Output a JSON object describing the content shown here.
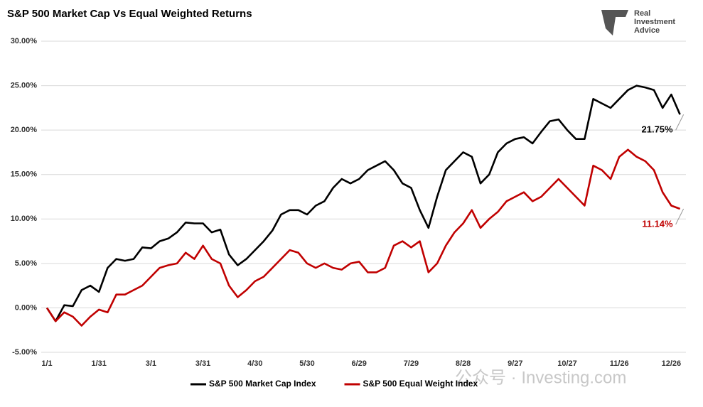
{
  "chart_data": {
    "type": "line",
    "title": "S&P 500 Market Cap Vs Equal Weighted Returns",
    "logo": [
      "Real",
      "Investment",
      "Advice"
    ],
    "watermark": "公众号 · Investing.com",
    "categories": [
      "1/1",
      null,
      null,
      null,
      null,
      null,
      "1/31",
      null,
      null,
      null,
      null,
      null,
      "3/1",
      null,
      null,
      null,
      null,
      null,
      "3/31",
      null,
      null,
      null,
      null,
      null,
      "4/30",
      null,
      null,
      null,
      null,
      null,
      "5/30",
      null,
      null,
      null,
      null,
      null,
      "6/29",
      null,
      null,
      null,
      null,
      null,
      "7/29",
      null,
      null,
      null,
      null,
      null,
      "8/28",
      null,
      null,
      null,
      null,
      null,
      "9/27",
      null,
      null,
      null,
      null,
      null,
      "10/27",
      null,
      null,
      null,
      null,
      null,
      "11/26",
      null,
      null,
      null,
      null,
      null,
      "12/26",
      null
    ],
    "series": [
      {
        "name": "S&P 500 Market Cap Index",
        "color": "#000000",
        "values": [
          0,
          -1.5,
          0.3,
          0.2,
          2,
          2.5,
          1.8,
          4.5,
          5.5,
          5.3,
          5.5,
          6.8,
          6.7,
          7.5,
          7.8,
          8.5,
          9.6,
          9.5,
          9.5,
          8.5,
          8.8,
          6,
          4.8,
          5.5,
          6.5,
          7.5,
          8.7,
          10.5,
          11,
          11,
          10.5,
          11.5,
          12,
          13.5,
          14.5,
          14,
          14.5,
          15.5,
          16,
          16.5,
          15.5,
          14,
          13.5,
          11,
          9,
          12.5,
          15.5,
          16.5,
          17.5,
          17,
          14,
          15,
          17.5,
          18.5,
          19,
          19.2,
          18.5,
          19.8,
          21,
          21.2,
          20,
          19,
          19,
          23.5,
          23,
          22.5,
          23.5,
          24.5,
          25,
          24.8,
          24.5,
          22.5,
          24,
          21.75
        ],
        "value_labels": [
          null,
          null,
          null,
          null,
          null,
          null,
          null,
          null,
          null,
          null,
          null,
          null,
          null,
          null,
          null,
          null,
          null,
          null,
          null,
          null,
          null,
          null,
          null,
          null,
          null,
          null,
          null,
          null,
          null,
          null,
          null,
          null,
          null,
          null,
          null,
          null,
          null,
          null,
          null,
          null,
          null,
          null,
          null,
          null,
          null,
          null,
          null,
          null,
          null,
          null,
          null,
          null,
          null,
          null,
          null,
          null,
          null,
          null,
          null,
          null,
          null,
          null,
          null,
          null,
          null,
          null,
          null,
          null,
          null,
          null,
          null,
          null,
          null,
          "21.75%"
        ]
      },
      {
        "name": "S&P 500 Equal Weight Index",
        "color": "#c00000",
        "values": [
          0,
          -1.5,
          -0.5,
          -1,
          -2,
          -1,
          -0.2,
          -0.5,
          1.5,
          1.5,
          2,
          2.5,
          3.5,
          4.5,
          4.8,
          5,
          6.2,
          5.5,
          7,
          5.5,
          5,
          2.5,
          1.2,
          2,
          3,
          3.5,
          4.5,
          5.5,
          6.5,
          6.2,
          5,
          4.5,
          5,
          4.5,
          4.3,
          5,
          5.2,
          4,
          4,
          4.5,
          7,
          7.5,
          6.8,
          7.5,
          4,
          5,
          7,
          8.5,
          9.5,
          11,
          9,
          10,
          10.8,
          12,
          12.5,
          13,
          12,
          12.5,
          13.5,
          14.5,
          13.5,
          12.5,
          11.5,
          16,
          15.5,
          14.5,
          17,
          17.8,
          17,
          16.5,
          15.5,
          13,
          11.5,
          11.14
        ],
        "value_labels": [
          null,
          null,
          null,
          null,
          null,
          null,
          null,
          null,
          null,
          null,
          null,
          null,
          null,
          null,
          null,
          null,
          null,
          null,
          null,
          null,
          null,
          null,
          null,
          null,
          null,
          null,
          null,
          null,
          null,
          null,
          null,
          null,
          null,
          null,
          null,
          null,
          null,
          null,
          null,
          null,
          null,
          null,
          null,
          null,
          null,
          null,
          null,
          null,
          null,
          null,
          null,
          null,
          null,
          null,
          null,
          null,
          null,
          null,
          null,
          null,
          null,
          null,
          null,
          null,
          null,
          null,
          null,
          null,
          null,
          null,
          null,
          null,
          null,
          "11.14%"
        ]
      }
    ],
    "ylim": [
      -5,
      30
    ],
    "yticks": [
      {
        "value": -5,
        "label": "-5.00%"
      },
      {
        "value": 0,
        "label": "0.00%"
      },
      {
        "value": 5,
        "label": "5.00%"
      },
      {
        "value": 10,
        "label": "10.00%"
      },
      {
        "value": 15,
        "label": "15.00%"
      },
      {
        "value": 20,
        "label": "20.00%"
      },
      {
        "value": 25,
        "label": "25.00%"
      },
      {
        "value": 30,
        "label": "30.00%"
      }
    ],
    "grid": true,
    "legend": "bottom"
  }
}
